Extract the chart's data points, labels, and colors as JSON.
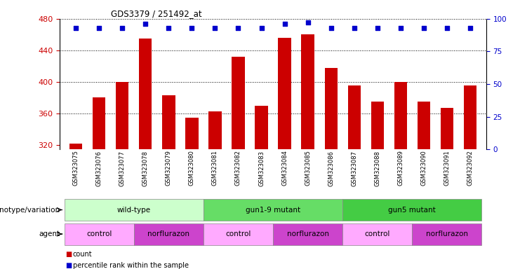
{
  "title": "GDS3379 / 251492_at",
  "samples": [
    "GSM323075",
    "GSM323076",
    "GSM323077",
    "GSM323078",
    "GSM323079",
    "GSM323080",
    "GSM323081",
    "GSM323082",
    "GSM323083",
    "GSM323084",
    "GSM323085",
    "GSM323086",
    "GSM323087",
    "GSM323088",
    "GSM323089",
    "GSM323090",
    "GSM323091",
    "GSM323092"
  ],
  "counts": [
    322,
    381,
    400,
    455,
    383,
    355,
    363,
    432,
    370,
    456,
    460,
    418,
    396,
    375,
    400,
    375,
    367,
    396
  ],
  "percentile_ranks": [
    93,
    93,
    93,
    96,
    93,
    93,
    93,
    93,
    93,
    96,
    97,
    93,
    93,
    93,
    93,
    93,
    93,
    93
  ],
  "bar_color": "#cc0000",
  "dot_color": "#0000cc",
  "ylim_left": [
    315,
    480
  ],
  "ylim_right": [
    0,
    100
  ],
  "yticks_left": [
    320,
    360,
    400,
    440,
    480
  ],
  "yticks_right": [
    0,
    25,
    50,
    75,
    100
  ],
  "grid_values": [
    360,
    400,
    440
  ],
  "plot_bg_color": "#ffffff",
  "genotype_row": [
    {
      "label": "wild-type",
      "start": 0,
      "end": 5,
      "color": "#ccffcc"
    },
    {
      "label": "gun1-9 mutant",
      "start": 6,
      "end": 11,
      "color": "#66dd66"
    },
    {
      "label": "gun5 mutant",
      "start": 12,
      "end": 17,
      "color": "#44cc44"
    }
  ],
  "agent_row": [
    {
      "label": "control",
      "start": 0,
      "end": 2,
      "color": "#ffaaff"
    },
    {
      "label": "norflurazon",
      "start": 3,
      "end": 5,
      "color": "#cc44cc"
    },
    {
      "label": "control",
      "start": 6,
      "end": 8,
      "color": "#ffaaff"
    },
    {
      "label": "norflurazon",
      "start": 9,
      "end": 11,
      "color": "#cc44cc"
    },
    {
      "label": "control",
      "start": 12,
      "end": 14,
      "color": "#ffaaff"
    },
    {
      "label": "norflurazon",
      "start": 15,
      "end": 17,
      "color": "#cc44cc"
    }
  ],
  "genotype_label": "genotype/variation",
  "agent_label": "agent",
  "legend_count_color": "#cc0000",
  "legend_dot_color": "#0000cc"
}
